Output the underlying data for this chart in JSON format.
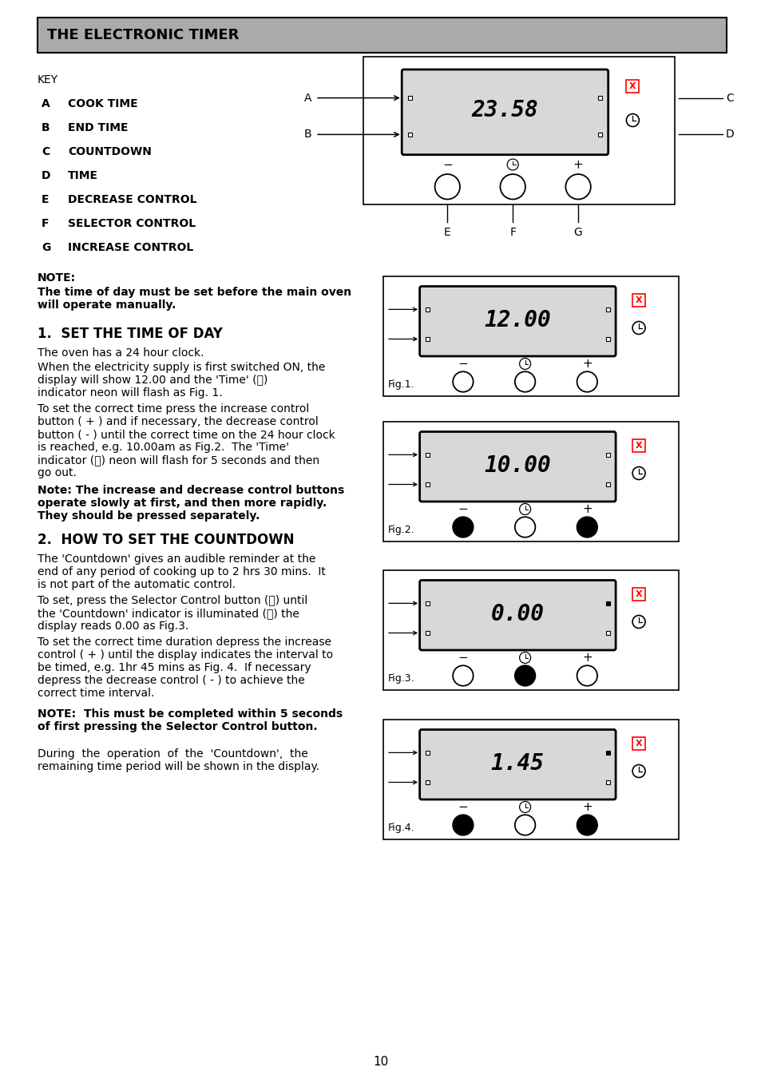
{
  "title": "THE ELECTRONIC TIMER",
  "title_bg": "#999999",
  "page_bg": "#ffffff",
  "page_number": "10",
  "key_label": "KEY",
  "key_items": [
    [
      "A",
      "COOK TIME"
    ],
    [
      "B",
      "END TIME"
    ],
    [
      "C",
      "COUNTDOWN"
    ],
    [
      "D",
      "TIME"
    ],
    [
      "E",
      "DECREASE CONTROL"
    ],
    [
      "F",
      "SELECTOR CONTROL"
    ],
    [
      "G",
      "INCREASE CONTROL"
    ]
  ],
  "note_bold1": "NOTE:",
  "note_bold2": "The time of day must be set before the main oven\nwill operate manually.",
  "section1_title": "1.  SET THE TIME OF DAY",
  "section1_p1": "The oven has a 24 hour clock.",
  "section1_p2a": "When the electricity supply is first switched ON, the",
  "section1_p2b": "display will show 12.00 and the 'Time' (⏰)",
  "section1_p2c": "indicator neon will flash as Fig. 1.",
  "section1_p3a": "To set the correct time press the increase control",
  "section1_p3b": "button ( + ) and if necessary, the decrease control",
  "section1_p3c": "button ( - ) until the correct time on the 24 hour clock",
  "section1_p3d": "is reached, e.g. 10.00am as Fig.2.  The 'Time'",
  "section1_p3e": "indicator (⏰) neon will flash for 5 seconds and then",
  "section1_p3f": "go out.",
  "section1_note": "Note: The increase and decrease control buttons\noperate slowly at first, and then more rapidly.\nThey should be pressed separately.",
  "section2_title": "2.  HOW TO SET THE COUNTDOWN",
  "section2_p1a": "The 'Countdown' gives an audible reminder at the",
  "section2_p1b": "end of any period of cooking up to 2 hrs 30 mins.  It",
  "section2_p1c": "is not part of the automatic control.",
  "section2_p2a": "To set, press the Selector Control button (⏰) until",
  "section2_p2b": "the 'Countdown' indicator is illuminated (⦻) the",
  "section2_p2c": "display reads 0.00 as Fig.3.",
  "section2_p3a": "To set the correct time duration depress the increase",
  "section2_p3b": "control ( + ) until the display indicates the interval to",
  "section2_p3c": "be timed, e.g. 1hr 45 mins as Fig. 4.  If necessary",
  "section2_p3d": "depress the decrease control ( - ) to achieve the",
  "section2_p3e": "correct time interval.",
  "section2_note": "NOTE:  This must be completed within 5 seconds\nof first pressing the Selector Control button.",
  "section2_p4a": "During  the  operation  of  the  'Countdown',  the",
  "section2_p4b": "remaining time period will be shown in the display.",
  "fig_displays": [
    "12.00",
    "10.00",
    "0.00",
    "1.45"
  ],
  "fig_button_states": [
    [
      false,
      false,
      false
    ],
    [
      true,
      false,
      true
    ],
    [
      false,
      true,
      false
    ],
    [
      true,
      false,
      true
    ]
  ],
  "fig_right_sq_filled": [
    false,
    false,
    true,
    true
  ]
}
